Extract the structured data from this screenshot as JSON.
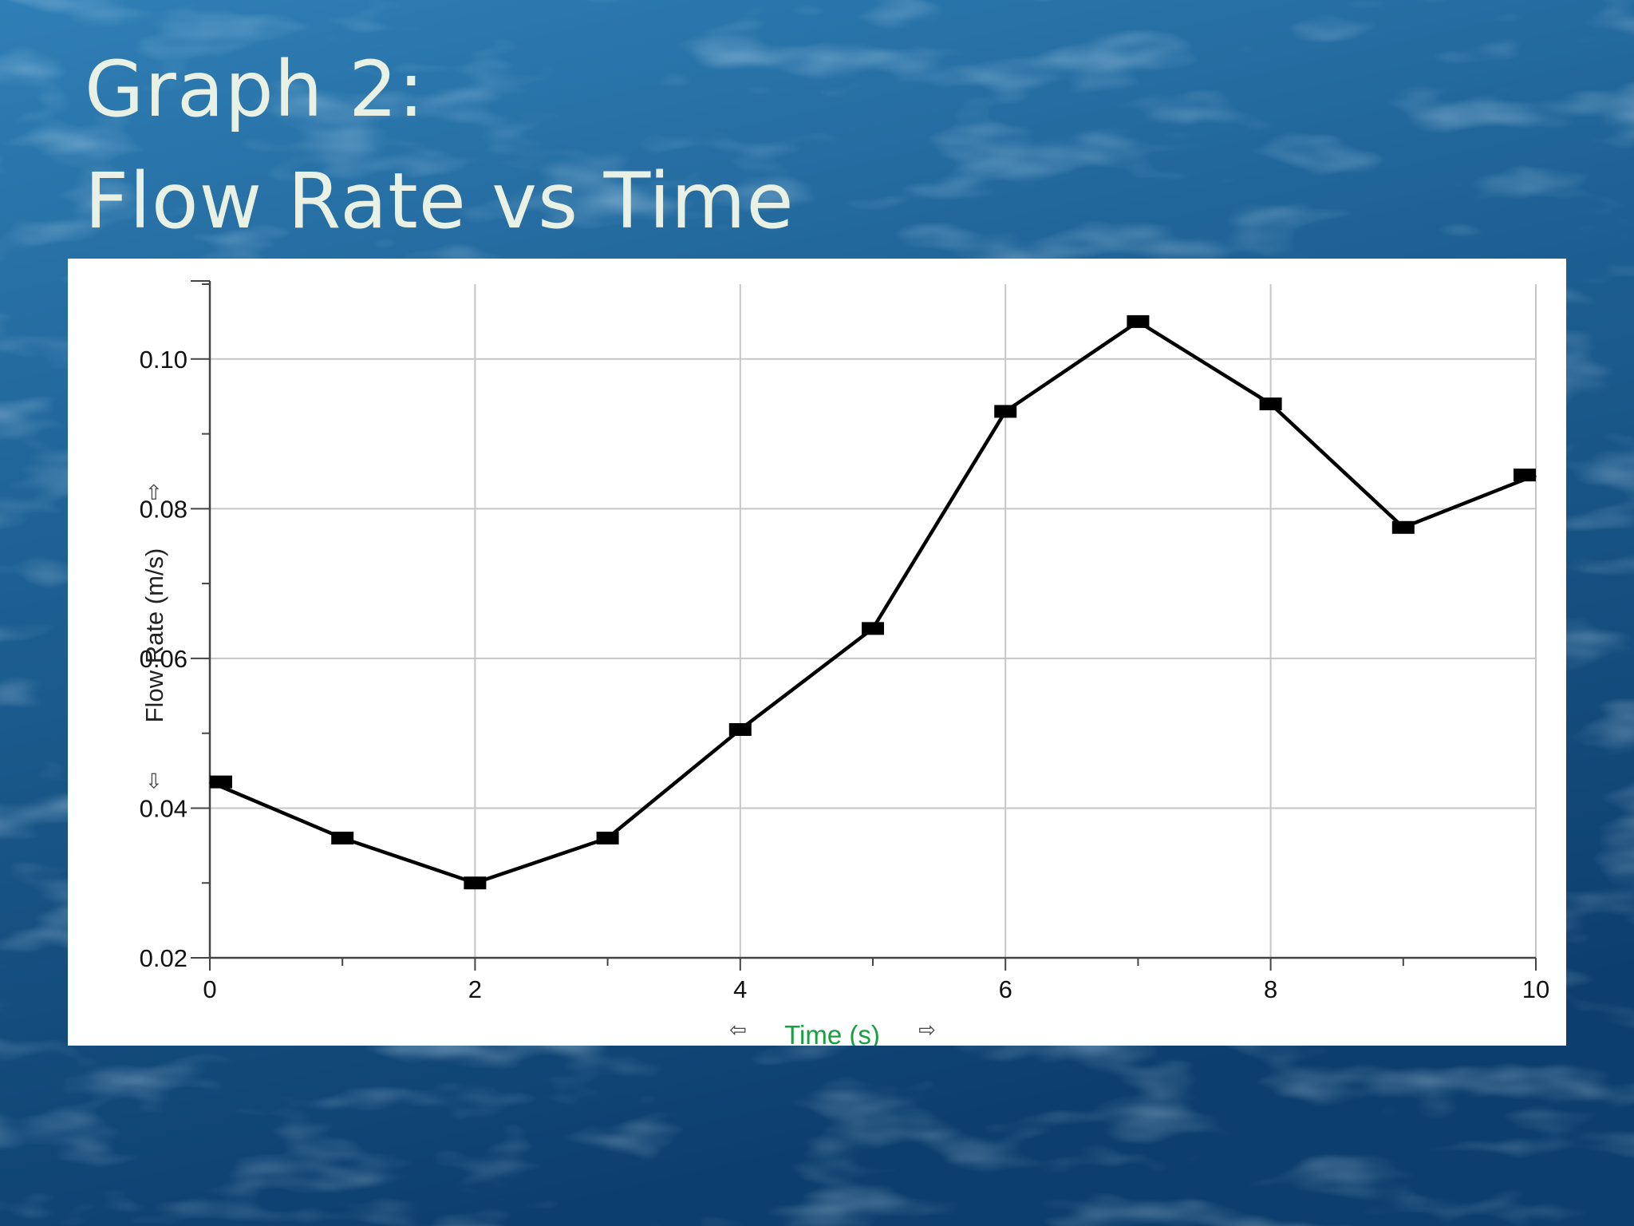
{
  "slide": {
    "title_line_1": "Graph 2:",
    "title_line_2": "Flow Rate vs Time",
    "title_color": "#e9f0e4",
    "background_colors": [
      "#0d3f6e",
      "#1d5f92",
      "#2f7fb6"
    ]
  },
  "chart_data": {
    "type": "line",
    "x": [
      0,
      1,
      2,
      3,
      4,
      5,
      6,
      7,
      8,
      9,
      10
    ],
    "series": [
      {
        "values": [
          0.0435,
          0.036,
          0.03,
          0.036,
          0.0505,
          0.064,
          0.093,
          0.105,
          0.094,
          0.0775,
          0.0845
        ],
        "color": "#000000",
        "marker": "square"
      }
    ],
    "xlabel": "Time (s)",
    "ylabel": "Flow Rate (m/s)",
    "xlim": [
      0,
      10
    ],
    "ylim": [
      0.02,
      0.11
    ],
    "xticks": [
      0,
      2,
      4,
      6,
      8,
      10
    ],
    "xtick_labels": [
      "0",
      "2",
      "4",
      "6",
      "8",
      "10"
    ],
    "yticks": [
      0.02,
      0.04,
      0.06,
      0.08,
      0.1
    ],
    "ytick_labels": [
      "0.02",
      "0.04",
      "0.06",
      "0.08",
      "0.10"
    ],
    "grid": true,
    "xlabel_color": "#18a040",
    "arrow_icons": {
      "y_up": "arrow-up-icon",
      "y_down": "arrow-down-icon",
      "x_left": "arrow-left-icon",
      "x_right": "arrow-right-icon"
    }
  }
}
